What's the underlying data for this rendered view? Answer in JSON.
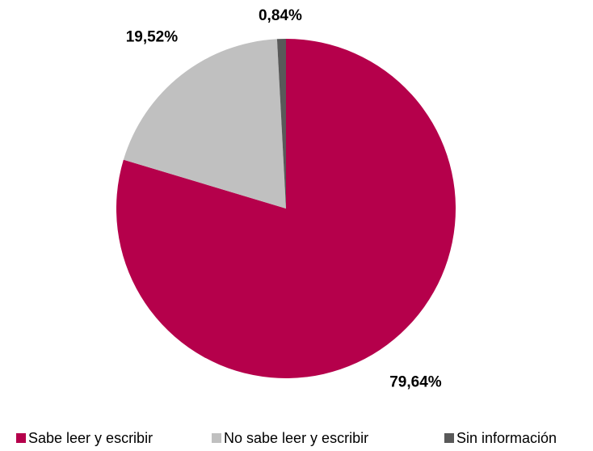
{
  "chart_data": {
    "type": "pie",
    "categories": [
      "Sabe leer y escribir",
      "No sabe leer y escribir",
      "Sin información"
    ],
    "values": [
      79.64,
      19.52,
      0.84
    ],
    "value_labels": [
      "79,64%",
      "19,52%",
      "0,84%"
    ],
    "colors": [
      "#b5004b",
      "#c0c0c0",
      "#595959"
    ],
    "legend": "bottom"
  }
}
